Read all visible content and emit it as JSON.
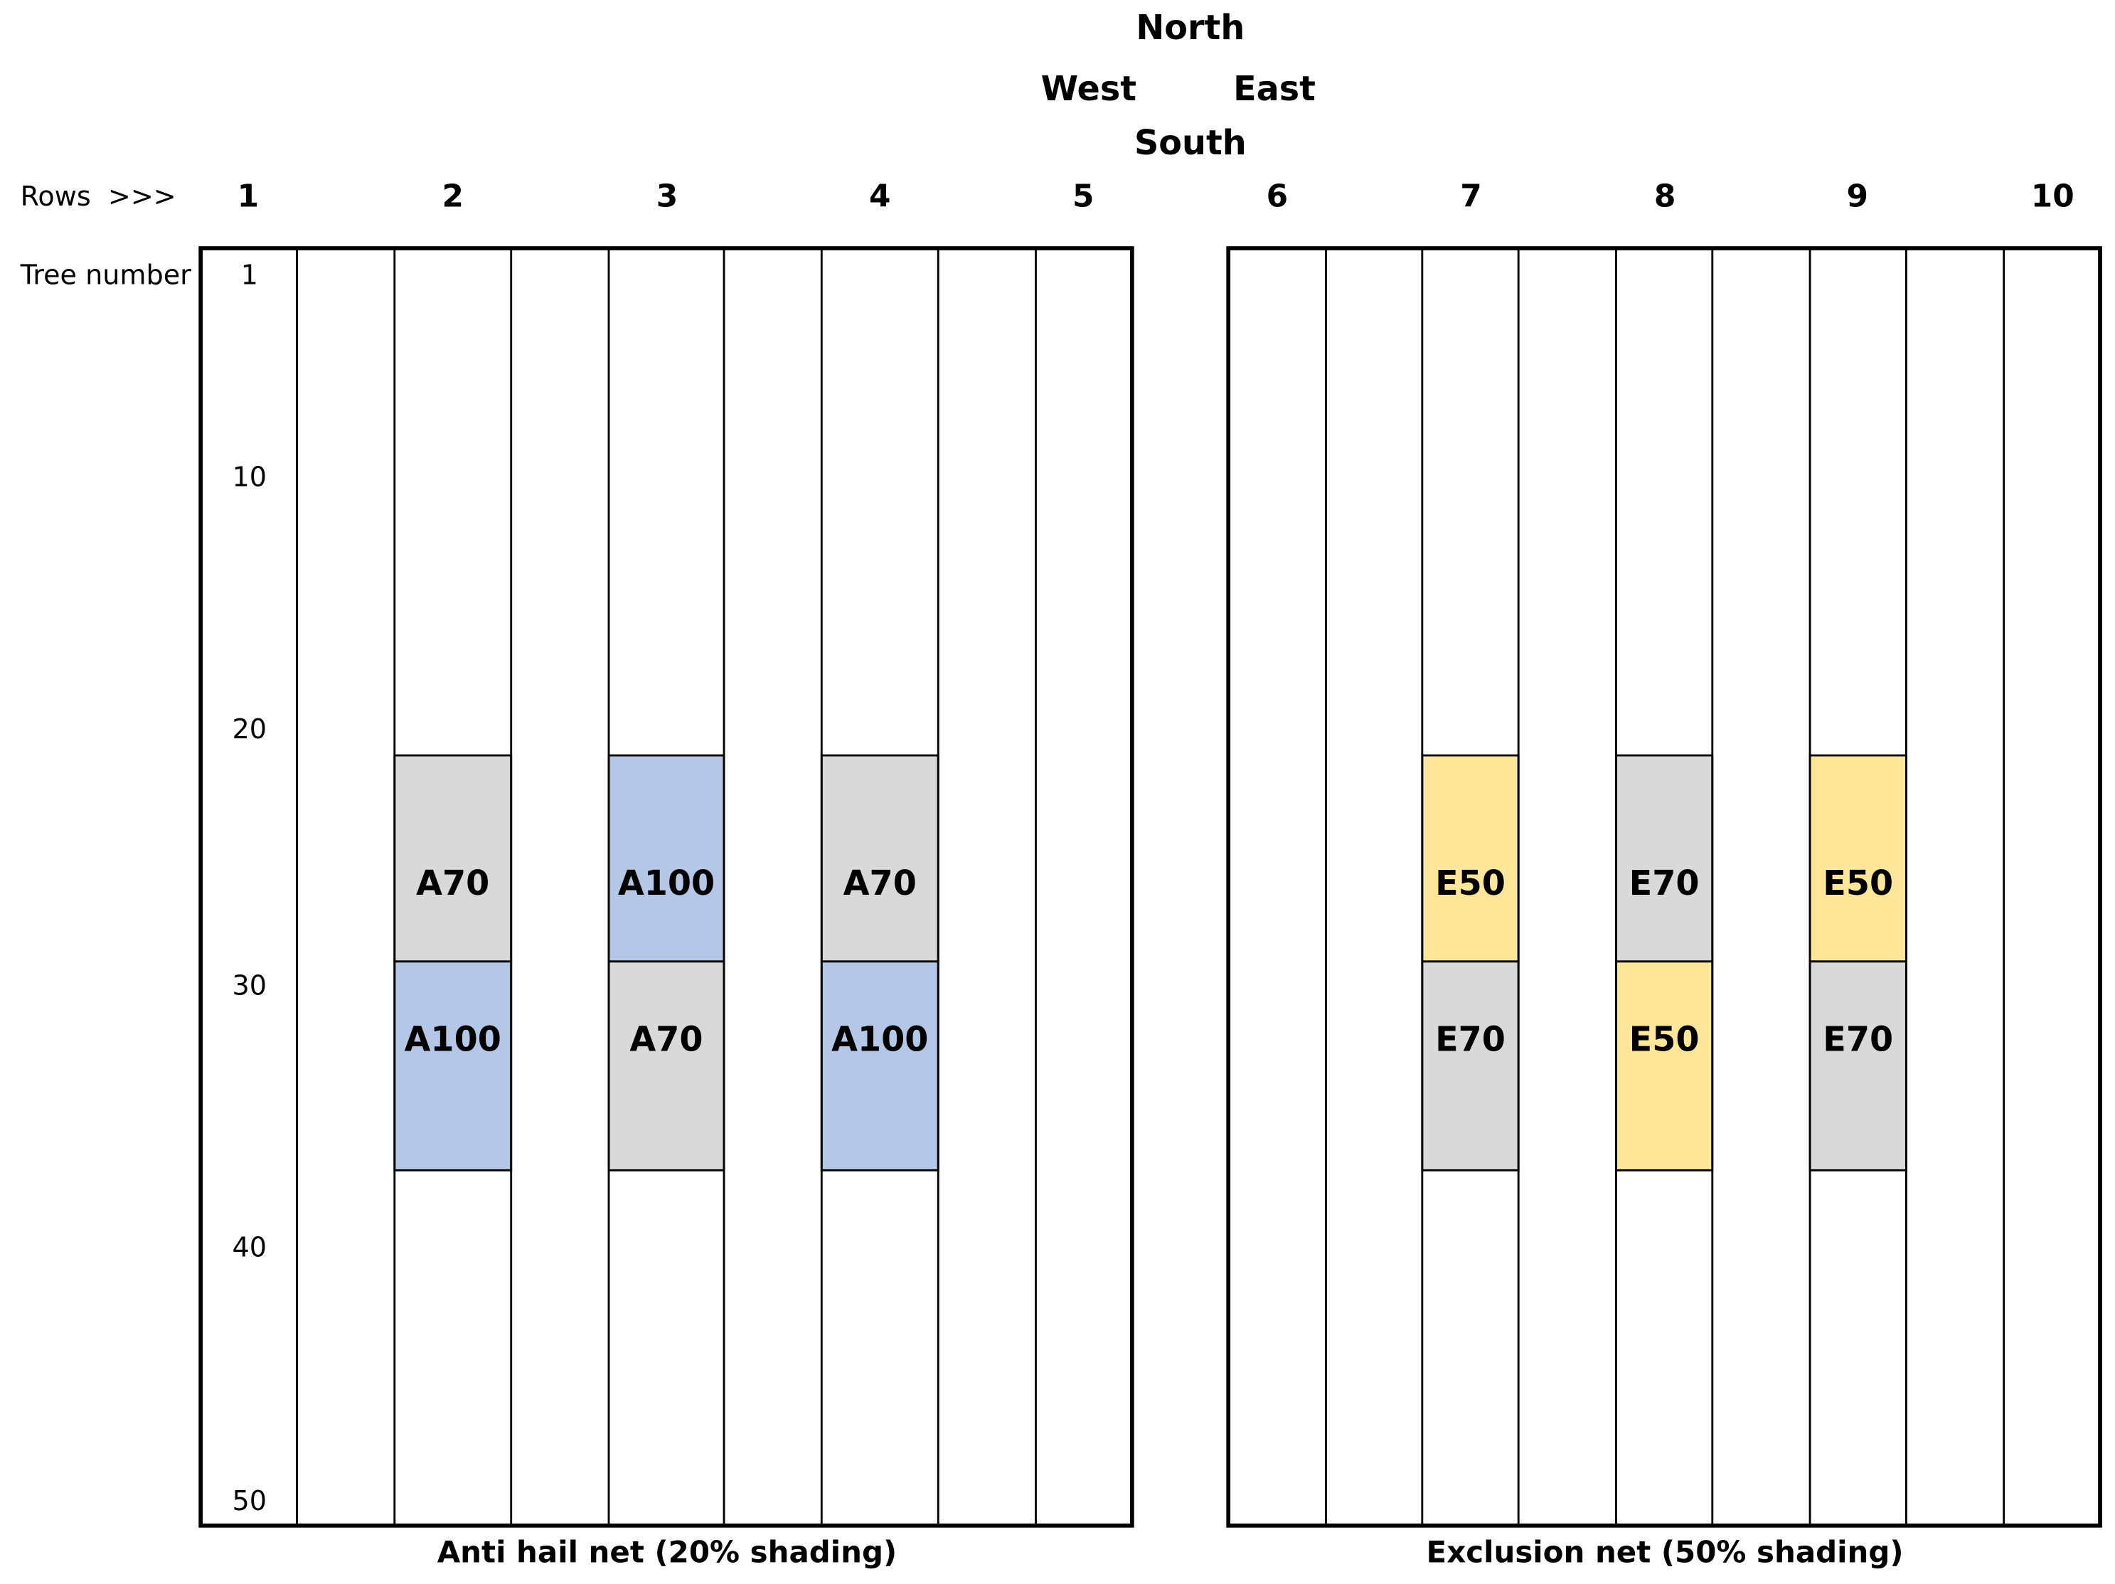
{
  "compass": {
    "north": "North",
    "west": "West",
    "east": "East",
    "south": "South"
  },
  "rows_label": "Rows  >>>",
  "rows": [
    "1",
    "2",
    "3",
    "4",
    "5",
    "6",
    "7",
    "8",
    "9",
    "10"
  ],
  "tree_label": "Tree number",
  "trees": [
    "1",
    "10",
    "20",
    "30",
    "40",
    "50"
  ],
  "plots": [
    {
      "label": "A70",
      "color": "#d9d9d9"
    },
    {
      "label": "A100",
      "color": "#b4c7e7"
    },
    {
      "label": "A100",
      "color": "#b4c7e7"
    },
    {
      "label": "A70",
      "color": "#d9d9d9"
    },
    {
      "label": "A70",
      "color": "#d9d9d9"
    },
    {
      "label": "A100",
      "color": "#b4c7e7"
    },
    {
      "label": "E50",
      "color": "#ffe699"
    },
    {
      "label": "E70",
      "color": "#d9d9d9"
    },
    {
      "label": "E70",
      "color": "#d9d9d9"
    },
    {
      "label": "E50",
      "color": "#ffe699"
    },
    {
      "label": "E50",
      "color": "#ffe699"
    },
    {
      "label": "E70",
      "color": "#d9d9d9"
    }
  ],
  "nets": [
    "Anti hail net (20% shading)",
    "Exclusion net (50% shading)"
  ]
}
